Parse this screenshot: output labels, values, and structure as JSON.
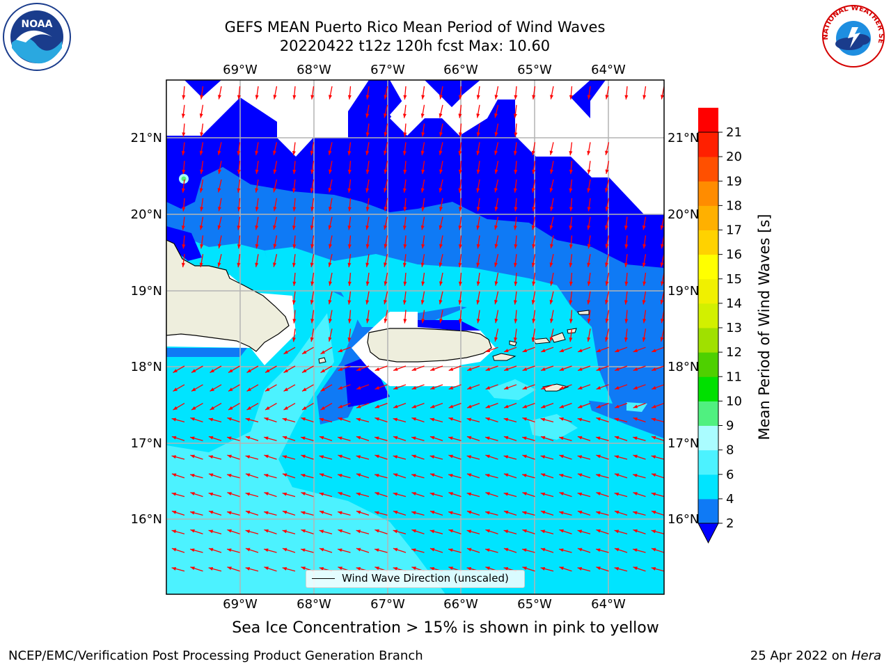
{
  "title_line1": "GEFS MEAN Puerto Rico Mean Period of Wind Waves",
  "title_line2": "20220422 t12z 120h fcst   Max: 10.60",
  "subtitle": "Sea Ice Concentration > 15% is shown in pink to yellow",
  "footer_left": "NCEP/EMC/Verification Post Processing Product Generation Branch",
  "footer_date": "25 Apr 2022 on",
  "footer_host": "Hera",
  "legend_label": "Wind Wave Direction (unscaled)",
  "colorbar": {
    "title": "Mean Period of Wind Waves [s]",
    "levels": [
      2,
      4,
      6,
      8,
      9,
      10,
      11,
      12,
      13,
      14,
      15,
      16,
      17,
      18,
      19,
      20,
      21
    ],
    "colors": [
      "#0f7af5",
      "#00e4ff",
      "#4cf2ff",
      "#aafcff",
      "#50f080",
      "#00e000",
      "#4ed000",
      "#a0e000",
      "#d2f000",
      "#f0f000",
      "#ffff00",
      "#ffd200",
      "#ffb000",
      "#ff8c00",
      "#ff5000",
      "#ff2000",
      "#ff0000"
    ],
    "under_color": "#0000ff"
  },
  "map": {
    "lon_labels": [
      "69°W",
      "68°W",
      "67°W",
      "66°W",
      "65°W",
      "64°W"
    ],
    "lat_labels": [
      "21°N",
      "20°N",
      "19°N",
      "18°N",
      "17°N",
      "16°N"
    ],
    "land_color": "#eeeedd",
    "arrow_color": "#ff0000"
  },
  "logos": {
    "noaa_text": "NOAA",
    "nws_text": "NATIONAL WEATHER SERVICE"
  }
}
